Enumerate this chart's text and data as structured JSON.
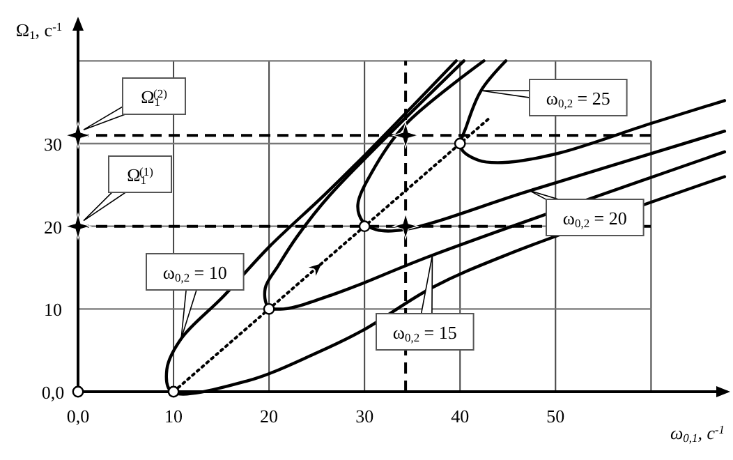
{
  "chart_data": {
    "type": "line",
    "xlabel": "ω$_{0,1}$, с$^{-1}$",
    "ylabel": "Ω$_{1}$, с$^{-1}$",
    "xlim": [
      0,
      68
    ],
    "ylim": [
      0,
      45
    ],
    "xticks": [
      {
        "value": 0,
        "label": "0,0"
      },
      10,
      20,
      30,
      40,
      50,
      {
        "value": 60,
        "label": null
      }
    ],
    "yticks": [
      {
        "value": 0,
        "label": "0,0"
      },
      10,
      20,
      30,
      {
        "value": 40,
        "label": null
      }
    ],
    "grid": true,
    "series": [
      {
        "name": "ω$_{0,2}$ = 10",
        "color": "#000000",
        "line_style": "solid",
        "marker": "none",
        "x": [
          39.6,
          30.2,
          25.8,
          20,
          15.2,
          10.8,
          9.3,
          9.8,
          17.7,
          25,
          29.8,
          37.1,
          45,
          67.7
        ],
        "values": [
          40,
          28.8,
          23.8,
          17.5,
          11.5,
          6.4,
          2.7,
          0,
          1.3,
          4.7,
          7.4,
          12.6,
          16.6,
          26
        ]
      },
      {
        "name": "ω$_{0,2}$ = 15",
        "color": "#000000",
        "line_style": "solid",
        "marker": "none",
        "x": [
          40.4,
          26.4,
          22.9,
          21,
          19.6,
          19.9,
          21.5,
          27.3,
          37.1,
          67.7
        ],
        "values": [
          40,
          23.8,
          18.7,
          15.3,
          12.5,
          10.3,
          10,
          12,
          16.5,
          29
        ]
      },
      {
        "name": "ω$_{0,2}$ = 20",
        "color": "#000000",
        "line_style": "solid",
        "marker": "none",
        "x": [
          42.5,
          34.2,
          30.8,
          29.3,
          29.8,
          31.2,
          34.2,
          47.3,
          67.7
        ],
        "values": [
          40,
          32.2,
          26.6,
          22.6,
          20.6,
          19.6,
          19.6,
          24.3,
          31.5
        ]
      },
      {
        "name": "ω$_{0,2}$ = 25",
        "color": "#000000",
        "line_style": "solid",
        "marker": "none",
        "x": [
          44.8,
          42.2,
          40.7,
          40.1,
          41.9,
          44.4,
          50.2,
          59.9,
          67.7
        ],
        "values": [
          40,
          36.4,
          32.2,
          29.5,
          28,
          27.7,
          28.8,
          32.4,
          35.2
        ]
      },
      {
        "color": "#000000",
        "line_style": "dotted",
        "marker": "none",
        "x": [
          10,
          43
        ],
        "values": [
          0,
          33
        ]
      },
      {
        "type": "scatter",
        "color": "#ffffff",
        "marker": "circle",
        "x": [
          0,
          10,
          20,
          30,
          40
        ],
        "values": [
          0,
          0,
          10,
          20,
          30
        ]
      },
      {
        "type": "scatter",
        "color": "#000000",
        "marker": "star",
        "x": [
          0,
          0,
          34.3,
          34.3
        ],
        "values": [
          20,
          31,
          31,
          20
        ]
      }
    ],
    "ref_lines": [
      {
        "axis": "y",
        "value": 20,
        "label": "Ω$_{1}$$^{(1)}$",
        "line_style": "dashed"
      },
      {
        "axis": "y",
        "value": 31,
        "label": "Ω$_{1}$$^{(2)}$",
        "line_style": "dashed"
      },
      {
        "axis": "x",
        "value": 34.3,
        "line_style": "dashed"
      }
    ]
  }
}
